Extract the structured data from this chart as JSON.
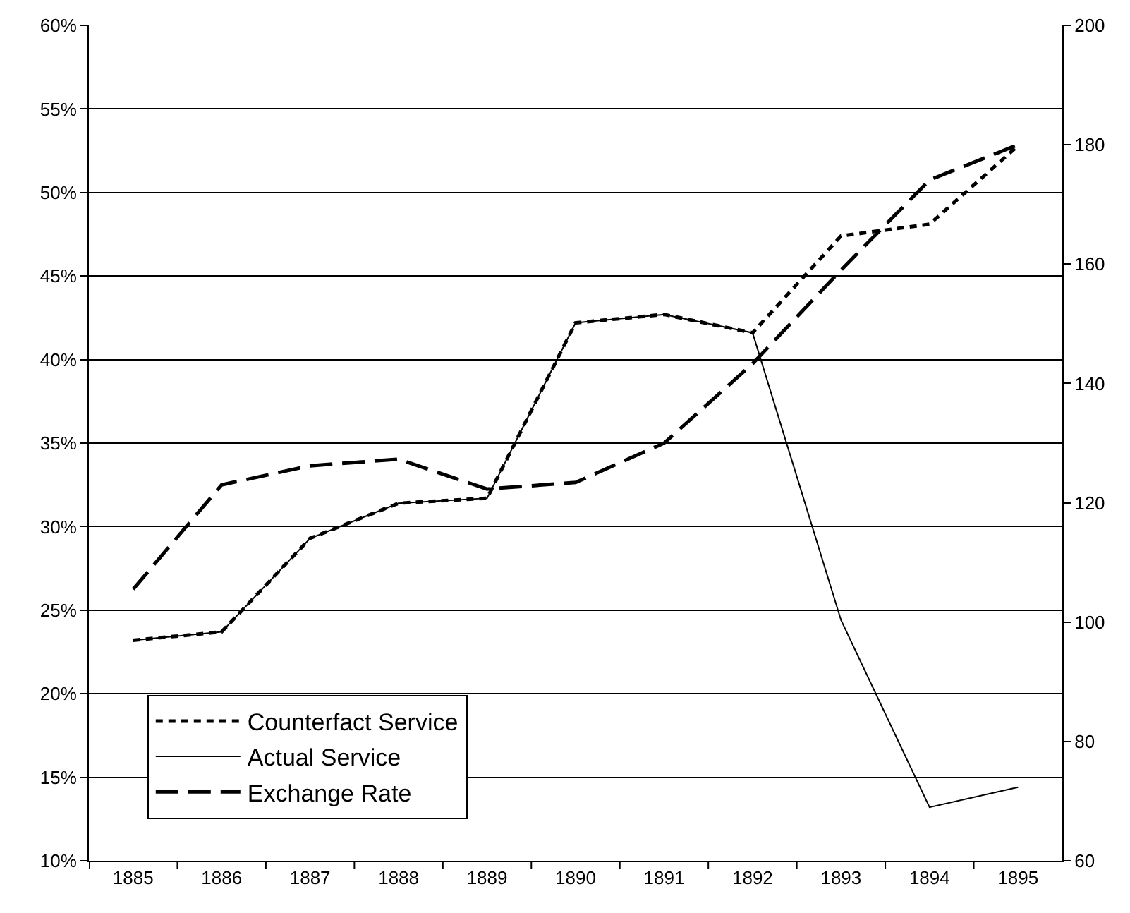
{
  "chart_data": {
    "type": "line",
    "categories": [
      "1885",
      "1886",
      "1887",
      "1888",
      "1889",
      "1890",
      "1891",
      "1892",
      "1893",
      "1894",
      "1895"
    ],
    "series": [
      {
        "name": "Counterfact Service",
        "color": "#000000",
        "line_style": "dotted",
        "values": [
          23.2,
          23.7,
          29.3,
          31.4,
          31.7,
          42.2,
          42.7,
          41.6,
          47.4,
          48.1,
          52.8
        ]
      },
      {
        "name": "Actual Service",
        "color": "#000000",
        "line_style": "solid",
        "values": [
          23.2,
          23.7,
          29.3,
          31.4,
          31.7,
          42.2,
          42.7,
          41.6,
          24.4,
          13.2,
          14.4
        ]
      },
      {
        "name": "Exchange Rate",
        "color": "#000000",
        "line_style": "dashed",
        "axis": "y2",
        "values": [
          105.5,
          123,
          126.2,
          127.3,
          122.3,
          123.4,
          130,
          143.3,
          159,
          174.1,
          180
        ]
      }
    ],
    "ylim": [
      10,
      60
    ],
    "yticks": [
      {
        "value": 10,
        "label": "10%"
      },
      {
        "value": 15,
        "label": "15%"
      },
      {
        "value": 20,
        "label": "20%"
      },
      {
        "value": 25,
        "label": "25%"
      },
      {
        "value": 30,
        "label": "30%"
      },
      {
        "value": 35,
        "label": "35%"
      },
      {
        "value": 40,
        "label": "40%"
      },
      {
        "value": 45,
        "label": "45%"
      },
      {
        "value": 50,
        "label": "50%"
      },
      {
        "value": 55,
        "label": "55%"
      },
      {
        "value": 60,
        "label": "60%"
      }
    ],
    "y2lim": [
      60,
      200
    ],
    "y2ticks": [
      60,
      80,
      100,
      120,
      140,
      160,
      180,
      200
    ],
    "grid": "y",
    "legend": "bottom left",
    "marker": "none"
  }
}
